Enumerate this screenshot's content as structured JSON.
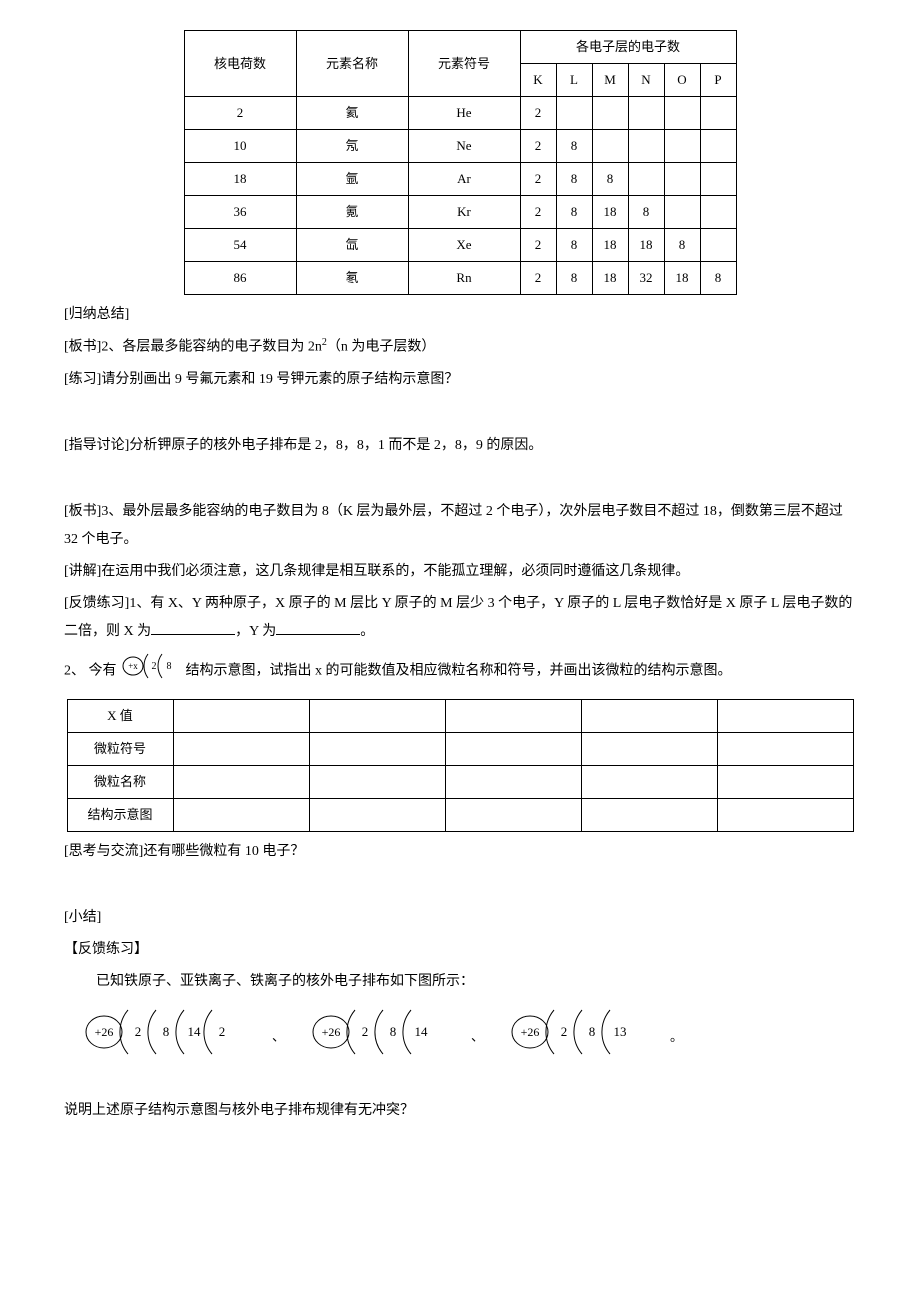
{
  "table1": {
    "header": {
      "charge": "核电荷数",
      "name": "元素名称",
      "symbol": "元素符号",
      "shells_title": "各电子层的电子数",
      "shell_labels": [
        "K",
        "L",
        "M",
        "N",
        "O",
        "P"
      ]
    },
    "rows": [
      {
        "charge": "2",
        "name": "氦",
        "symbol": "He",
        "shells": [
          "2",
          "",
          "",
          "",
          "",
          ""
        ]
      },
      {
        "charge": "10",
        "name": "氖",
        "symbol": "Ne",
        "shells": [
          "2",
          "8",
          "",
          "",
          "",
          ""
        ]
      },
      {
        "charge": "18",
        "name": "氩",
        "symbol": "Ar",
        "shells": [
          "2",
          "8",
          "8",
          "",
          "",
          ""
        ]
      },
      {
        "charge": "36",
        "name": "氪",
        "symbol": "Kr",
        "shells": [
          "2",
          "8",
          "18",
          "8",
          "",
          ""
        ]
      },
      {
        "charge": "54",
        "name": "氙",
        "symbol": "Xe",
        "shells": [
          "2",
          "8",
          "18",
          "18",
          "8",
          ""
        ]
      },
      {
        "charge": "86",
        "name": "氡",
        "symbol": "Rn",
        "shells": [
          "2",
          "8",
          "18",
          "32",
          "18",
          "8"
        ]
      }
    ]
  },
  "body": {
    "guina": "[归纳总结]",
    "banshu2_prefix": "[板书]2、各层最多能容纳的电子数目为 2n",
    "banshu2_sup": "2",
    "banshu2_suffix": "（n 为电子层数）",
    "lianxi": "[练习]请分别画出 9 号氟元素和 19 号钾元素的原子结构示意图？",
    "zhidao": "[指导讨论]分析钾原子的核外电子排布是 2，8，8，1 而不是 2，8，9 的原因。",
    "banshu3": "[板书]3、最外层最多能容纳的电子数目为 8（K 层为最外层，不超过 2 个电子），次外层电子数目不超过 18，倒数第三层不超过 32 个电子。",
    "jiangjie": "[讲解]在运用中我们必须注意，这几条规律是相互联系的，不能孤立理解，必须同时遵循这几条规律。",
    "fankui1_a": "[反馈练习]1、有 X、Y 两种原子，X 原子的 M 层比 Y 原子的 M 层少 3 个电子，Y 原子的 L 层电子数恰好是 X 原子 L 层电子数的二倍，则 X 为",
    "fankui1_b": "，Y 为",
    "fankui1_c": "。",
    "q2_a": "2、 今有",
    "q2_b": "结构示意图，试指出 x 的可能数值及相应微粒名称和符号，并画出该微粒的结构示意图。",
    "sikao": "[思考与交流]还有哪些微粒有 10 电子？",
    "xiaojie": "[小结]",
    "fankui_h": "【反馈练习】",
    "fankui_desc": "已知铁原子、亚铁离子、铁离子的核外电子排布如下图所示：",
    "shuoming": "说明上述原子结构示意图与核外电子排布规律有无冲突？"
  },
  "table2": {
    "row_labels": [
      "X 值",
      "微粒符号",
      "微粒名称",
      "结构示意图"
    ],
    "cols": 5
  },
  "diag_small": {
    "nucleus": "+x",
    "shells": [
      "2",
      "8"
    ]
  },
  "atoms": [
    {
      "nucleus": "+26",
      "shells": [
        "2",
        "8",
        "14",
        "2"
      ]
    },
    {
      "nucleus": "+26",
      "shells": [
        "2",
        "8",
        "14"
      ]
    },
    {
      "nucleus": "+26",
      "shells": [
        "2",
        "8",
        "13"
      ]
    }
  ],
  "atom_seps": [
    "、",
    "、",
    "。"
  ],
  "colors": {
    "text": "#000000",
    "bg": "#ffffff",
    "border": "#000000"
  }
}
